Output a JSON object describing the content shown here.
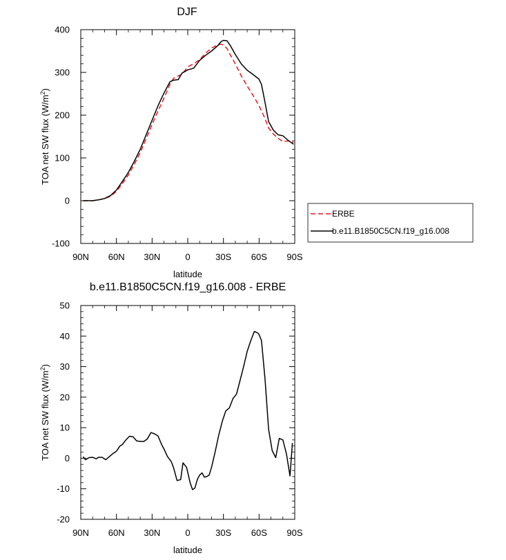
{
  "chart_data": [
    {
      "type": "line",
      "title": "DJF",
      "xlabel": "latitude",
      "ylabel": "TOA net SW flux (W/m",
      "ylabel_sup": "2",
      "ylabel_end": ")",
      "x_tick_values": [
        90,
        60,
        30,
        0,
        -30,
        -60,
        -90
      ],
      "x_tick_labels": [
        "90N",
        "60N",
        "30N",
        "0",
        "30S",
        "60S",
        "90S"
      ],
      "y_ticks": [
        -100,
        0,
        100,
        200,
        300,
        400
      ],
      "xlim": [
        90,
        -90
      ],
      "ylim": [
        -100,
        400
      ],
      "legend_position": "right",
      "colors": {
        "ERBE": "#e8161b",
        "model": "#000000"
      },
      "series": [
        {
          "name": "ERBE",
          "style": "dashed",
          "color": "#e8161b",
          "x": [
            88,
            80,
            75,
            70,
            65,
            60,
            55,
            50,
            45,
            40,
            35,
            30,
            25,
            20,
            15,
            12,
            8,
            5,
            0,
            -5,
            -10,
            -15,
            -20,
            -25,
            -28,
            -30,
            -33,
            -36,
            -40,
            -45,
            -50,
            -55,
            -60,
            -65,
            -68,
            -72,
            -76,
            -80,
            -85,
            -89
          ],
          "values": [
            0,
            0,
            2,
            5,
            10,
            22,
            40,
            60,
            85,
            112,
            145,
            178,
            210,
            240,
            272,
            286,
            292,
            295,
            313,
            320,
            330,
            345,
            357,
            364,
            366,
            364,
            356,
            340,
            320,
            292,
            268,
            246,
            222,
            192,
            170,
            156,
            146,
            138,
            140,
            136
          ]
        },
        {
          "name": "b.e11.B1850C5CN.f19_g16.008",
          "style": "solid",
          "color": "#000000",
          "x": [
            88,
            80,
            75,
            70,
            65,
            60,
            55,
            50,
            45,
            40,
            35,
            30,
            25,
            20,
            15,
            12,
            8,
            5,
            0,
            -5,
            -10,
            -15,
            -20,
            -25,
            -28,
            -30,
            -33,
            -36,
            -40,
            -45,
            -50,
            -55,
            -60,
            -62,
            -65,
            -68,
            -72,
            -76,
            -80,
            -84,
            -89
          ],
          "values": [
            0,
            0,
            2,
            5,
            12,
            25,
            45,
            66,
            92,
            120,
            154,
            188,
            222,
            252,
            278,
            282,
            283,
            298,
            306,
            310,
            328,
            340,
            350,
            362,
            372,
            375,
            374,
            362,
            342,
            320,
            305,
            295,
            284,
            272,
            230,
            185,
            165,
            154,
            152,
            142,
            132
          ]
        }
      ]
    },
    {
      "type": "line",
      "title": "b.e11.B1850C5CN.f19_g16.008 - ERBE",
      "xlabel": "latitude",
      "ylabel": "TOA net SW flux (W/m",
      "ylabel_sup": "2",
      "ylabel_end": ")",
      "x_tick_values": [
        90,
        60,
        30,
        0,
        -30,
        -60,
        -90
      ],
      "x_tick_labels": [
        "90N",
        "60N",
        "30N",
        "0",
        "30S",
        "60S",
        "90S"
      ],
      "y_ticks": [
        -20,
        -10,
        0,
        10,
        20,
        30,
        40,
        50
      ],
      "xlim": [
        90,
        -90
      ],
      "ylim": [
        -20,
        50
      ],
      "series": [
        {
          "style": "solid",
          "color": "#000000",
          "x": [
            88,
            86,
            83,
            80,
            77,
            75,
            72,
            69,
            66,
            63,
            60,
            57,
            55,
            52,
            49,
            46,
            43,
            40,
            37,
            34,
            31,
            28,
            25,
            22,
            20,
            17,
            14,
            12,
            9,
            6,
            4,
            1,
            -2,
            -4,
            -6,
            -8,
            -10,
            -12,
            -14,
            -16,
            -18,
            -20,
            -23,
            -26,
            -29,
            -32,
            -35,
            -38,
            -41,
            -44,
            -47,
            -50,
            -53,
            -56,
            -59,
            -60,
            -62,
            -65,
            -68,
            -71,
            -74,
            -77,
            -80,
            -83,
            -86,
            -88
          ],
          "values": [
            0.5,
            -0.5,
            0.2,
            0.3,
            -0.2,
            0.3,
            0.3,
            -0.5,
            0.5,
            1.5,
            2.3,
            4.0,
            4.5,
            6.0,
            7.2,
            7.0,
            5.7,
            5.5,
            5.5,
            6.3,
            8.4,
            8.0,
            7.3,
            4.5,
            3.0,
            0.5,
            -1.0,
            -3.0,
            -7.3,
            -7.0,
            -1.5,
            -3.0,
            -8.0,
            -10.3,
            -9.8,
            -7.0,
            -5.5,
            -4.8,
            -6.2,
            -6.0,
            -5.5,
            -3.0,
            2.0,
            7.5,
            12.0,
            15.5,
            16.5,
            19.5,
            21.0,
            25.5,
            30.0,
            35.0,
            38.5,
            41.5,
            41.0,
            40.5,
            38.5,
            26.0,
            9.5,
            2.5,
            0.2,
            6.5,
            6.0,
            1.5,
            -5.8,
            5.0
          ]
        }
      ]
    }
  ],
  "legend": {
    "erbe_label": "ERBE",
    "model_label": "b.e11.B1850C5CN.f19_g16.008"
  }
}
